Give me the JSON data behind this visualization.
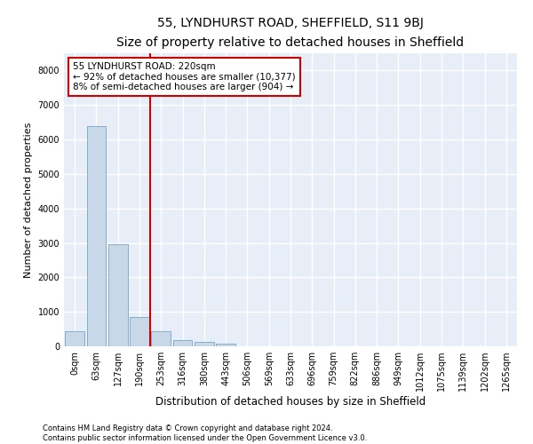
{
  "title": "55, LYNDHURST ROAD, SHEFFIELD, S11 9BJ",
  "subtitle": "Size of property relative to detached houses in Sheffield",
  "xlabel": "Distribution of detached houses by size in Sheffield",
  "ylabel": "Number of detached properties",
  "categories": [
    "0sqm",
    "63sqm",
    "127sqm",
    "190sqm",
    "253sqm",
    "316sqm",
    "380sqm",
    "443sqm",
    "506sqm",
    "569sqm",
    "633sqm",
    "696sqm",
    "759sqm",
    "822sqm",
    "886sqm",
    "949sqm",
    "1012sqm",
    "1075sqm",
    "1139sqm",
    "1202sqm",
    "1265sqm"
  ],
  "values": [
    430,
    6400,
    2950,
    850,
    430,
    180,
    130,
    70,
    0,
    0,
    0,
    0,
    0,
    0,
    0,
    0,
    0,
    0,
    0,
    0,
    0
  ],
  "bar_color": "#c8d8e8",
  "bar_edge_color": "#6699bb",
  "vline_x": 3.5,
  "vline_color": "#cc0000",
  "annotation_line1": "55 LYNDHURST ROAD: 220sqm",
  "annotation_line2": "← 92% of detached houses are smaller (10,377)",
  "annotation_line3": "8% of semi-detached houses are larger (904) →",
  "annotation_box_color": "#cc0000",
  "annotation_box_facecolor": "white",
  "footnote": "Contains HM Land Registry data © Crown copyright and database right 2024.\nContains public sector information licensed under the Open Government Licence v3.0.",
  "ylim": [
    0,
    8500
  ],
  "yticks": [
    0,
    1000,
    2000,
    3000,
    4000,
    5000,
    6000,
    7000,
    8000
  ],
  "plot_bg_color": "#e8eef8",
  "grid_color": "white",
  "title_fontsize": 10,
  "tick_fontsize": 7,
  "ylabel_fontsize": 8,
  "xlabel_fontsize": 8.5,
  "footnote_fontsize": 6,
  "annot_fontsize": 7.5
}
